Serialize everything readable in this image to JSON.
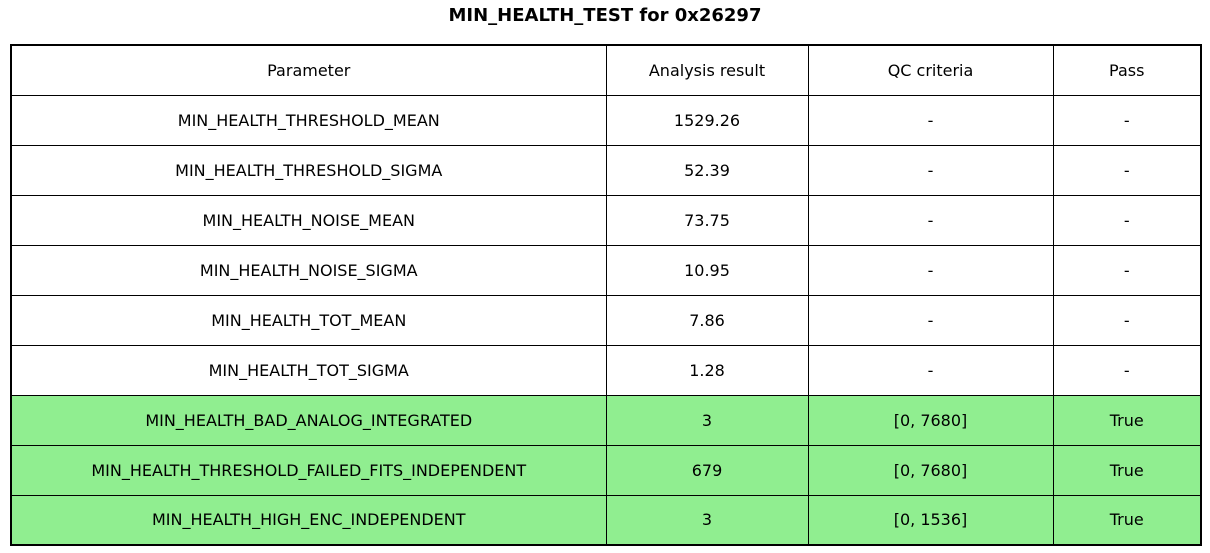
{
  "title": "MIN_HEALTH_TEST for 0x26297",
  "chart_data": {
    "type": "table",
    "title": "MIN_HEALTH_TEST for 0x26297",
    "columns": [
      "Parameter",
      "Analysis result",
      "QC criteria",
      "Pass"
    ],
    "rows": [
      {
        "parameter": "MIN_HEALTH_THRESHOLD_MEAN",
        "analysis_result": "1529.26",
        "qc_criteria": "-",
        "pass": "-",
        "highlight": false
      },
      {
        "parameter": "MIN_HEALTH_THRESHOLD_SIGMA",
        "analysis_result": "52.39",
        "qc_criteria": "-",
        "pass": "-",
        "highlight": false
      },
      {
        "parameter": "MIN_HEALTH_NOISE_MEAN",
        "analysis_result": "73.75",
        "qc_criteria": "-",
        "pass": "-",
        "highlight": false
      },
      {
        "parameter": "MIN_HEALTH_NOISE_SIGMA",
        "analysis_result": "10.95",
        "qc_criteria": "-",
        "pass": "-",
        "highlight": false
      },
      {
        "parameter": "MIN_HEALTH_TOT_MEAN",
        "analysis_result": "7.86",
        "qc_criteria": "-",
        "pass": "-",
        "highlight": false
      },
      {
        "parameter": "MIN_HEALTH_TOT_SIGMA",
        "analysis_result": "1.28",
        "qc_criteria": "-",
        "pass": "-",
        "highlight": false
      },
      {
        "parameter": "MIN_HEALTH_BAD_ANALOG_INTEGRATED",
        "analysis_result": "3",
        "qc_criteria": "[0, 7680]",
        "pass": "True",
        "highlight": true
      },
      {
        "parameter": "MIN_HEALTH_THRESHOLD_FAILED_FITS_INDEPENDENT",
        "analysis_result": "679",
        "qc_criteria": "[0, 7680]",
        "pass": "True",
        "highlight": true
      },
      {
        "parameter": "MIN_HEALTH_HIGH_ENC_INDEPENDENT",
        "analysis_result": "3",
        "qc_criteria": "[0, 1536]",
        "pass": "True",
        "highlight": true
      }
    ],
    "layout_hints": {
      "grid": true,
      "legend": "none",
      "row_highlight_meaning": "QC pass rows"
    }
  },
  "colors": {
    "pass_green": "#90EE90",
    "border": "#000000",
    "background": "#ffffff",
    "text": "#000000"
  }
}
